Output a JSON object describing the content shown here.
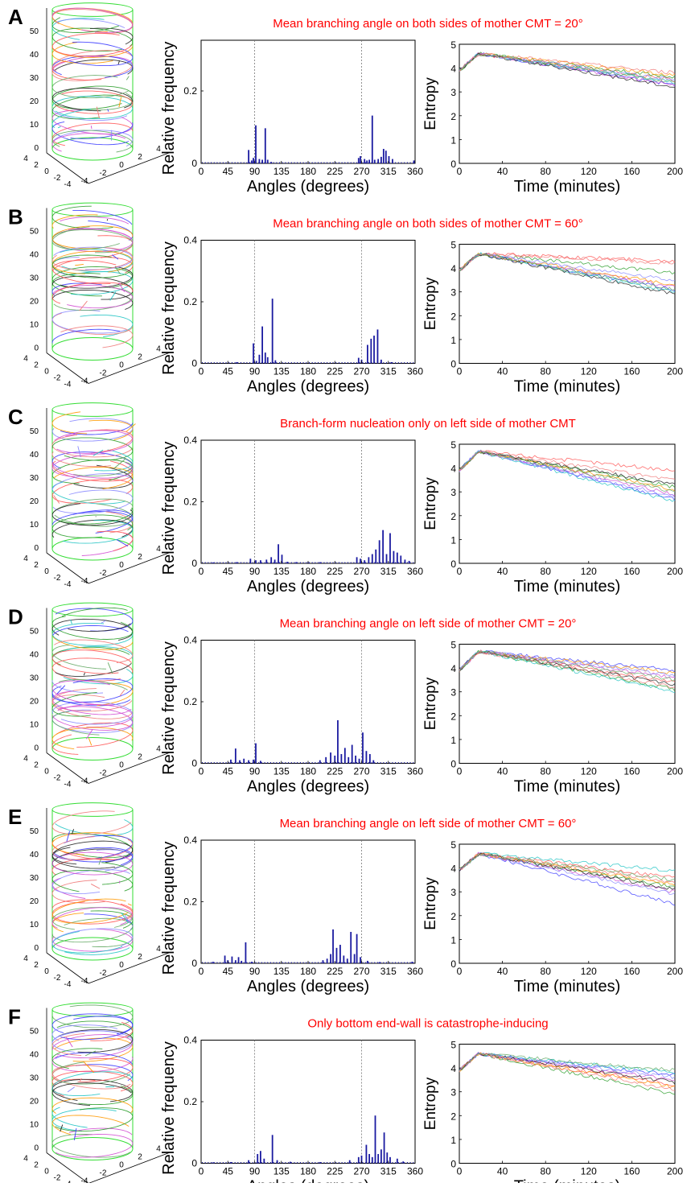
{
  "panels": [
    {
      "letter": "A",
      "title": "Mean branching angle on both sides of mother CMT = 20°",
      "helix": {
        "z_ticks": [
          "0",
          "10",
          "20",
          "30",
          "40",
          "50"
        ],
        "x_ticks": [
          "4",
          "2",
          "0",
          "-2",
          "-4"
        ],
        "y_ticks": [
          "-4",
          "-2",
          "0",
          "2",
          "4"
        ]
      },
      "hist": {
        "type": "bar",
        "xlabel": "Angles (degrees)",
        "ylabel": "Relative frequency",
        "xticks": [
          "0",
          "45",
          "90",
          "135",
          "180",
          "225",
          "270",
          "315",
          "360"
        ],
        "yticks": [
          "0",
          "0.2"
        ],
        "ylim": [
          0,
          0.34
        ],
        "xlim": [
          0,
          360
        ],
        "guides": [
          90,
          270
        ],
        "bars": [
          [
            80,
            0.037
          ],
          [
            85,
            0.008
          ],
          [
            88,
            0.015
          ],
          [
            92,
            0.105
          ],
          [
            98,
            0.012
          ],
          [
            103,
            0.01
          ],
          [
            108,
            0.097
          ],
          [
            112,
            0.01
          ],
          [
            118,
            0.004
          ],
          [
            265,
            0.015
          ],
          [
            268,
            0.02
          ],
          [
            275,
            0.012
          ],
          [
            279,
            0.008
          ],
          [
            283,
            0.01
          ],
          [
            288,
            0.132
          ],
          [
            292,
            0.01
          ],
          [
            298,
            0.012
          ],
          [
            303,
            0.018
          ],
          [
            307,
            0.04
          ],
          [
            311,
            0.035
          ],
          [
            316,
            0.02
          ],
          [
            322,
            0.012
          ],
          [
            358,
            0.008
          ]
        ]
      },
      "entropy": {
        "type": "line",
        "xlabel": "Time (minutes)",
        "ylabel": "Entropy",
        "xticks": [
          "0",
          "40",
          "80",
          "120",
          "160",
          "200"
        ],
        "yticks": [
          "0",
          "1",
          "2",
          "3",
          "4",
          "5"
        ],
        "xlim": [
          0,
          200
        ],
        "ylim": [
          0,
          5
        ],
        "peak": 4.6,
        "end_values": [
          3.3,
          3.5,
          3.6,
          3.3,
          3.4,
          3.7,
          3.2,
          3.5,
          3.8,
          3.4
        ]
      }
    },
    {
      "letter": "B",
      "title": "Mean branching angle on both sides of mother CMT = 60°",
      "helix": {
        "z_ticks": [
          "0",
          "10",
          "20",
          "30",
          "40",
          "50"
        ],
        "x_ticks": [
          "4",
          "2",
          "0",
          "-2",
          "-4"
        ],
        "y_ticks": [
          "-4",
          "-2",
          "0",
          "2",
          "4"
        ]
      },
      "hist": {
        "type": "bar",
        "xlabel": "Angles (degrees)",
        "ylabel": "Relative frequency",
        "xticks": [
          "0",
          "45",
          "90",
          "135",
          "180",
          "225",
          "270",
          "315",
          "360"
        ],
        "yticks": [
          "0",
          "0.2",
          "0.4"
        ],
        "ylim": [
          0,
          0.4
        ],
        "xlim": [
          0,
          360
        ],
        "guides": [
          90,
          270
        ],
        "bars": [
          [
            60,
            0.004
          ],
          [
            88,
            0.065
          ],
          [
            93,
            0.008
          ],
          [
            98,
            0.028
          ],
          [
            103,
            0.12
          ],
          [
            108,
            0.035
          ],
          [
            112,
            0.02
          ],
          [
            120,
            0.21
          ],
          [
            125,
            0.01
          ],
          [
            265,
            0.018
          ],
          [
            270,
            0.012
          ],
          [
            280,
            0.06
          ],
          [
            286,
            0.08
          ],
          [
            291,
            0.09
          ],
          [
            297,
            0.11
          ],
          [
            303,
            0.012
          ],
          [
            320,
            0.004
          ]
        ]
      },
      "entropy": {
        "type": "line",
        "xlabel": "Time (minutes)",
        "ylabel": "Entropy",
        "xticks": [
          "0",
          "40",
          "80",
          "120",
          "160",
          "200"
        ],
        "yticks": [
          "0",
          "1",
          "2",
          "3",
          "4",
          "5"
        ],
        "xlim": [
          0,
          200
        ],
        "ylim": [
          0,
          5
        ],
        "peak": 4.6,
        "end_values": [
          3.1,
          4.3,
          3.8,
          3.2,
          3.0,
          3.3,
          2.9,
          3.5,
          4.2,
          3.1
        ]
      }
    },
    {
      "letter": "C",
      "title": "Branch-form nucleation only on left side of mother CMT",
      "helix": {
        "z_ticks": [
          "0",
          "10",
          "20",
          "30",
          "40",
          "50"
        ],
        "x_ticks": [
          "4",
          "2",
          "0",
          "-2",
          "-4"
        ],
        "y_ticks": [
          "-4",
          "-2",
          "0",
          "2",
          "4"
        ]
      },
      "hist": {
        "type": "bar",
        "xlabel": "Angles (degrees)",
        "ylabel": "Relative frequency",
        "xticks": [
          "0",
          "45",
          "90",
          "135",
          "180",
          "225",
          "270",
          "315",
          "360"
        ],
        "yticks": [
          "0",
          "0.2",
          "0.4"
        ],
        "ylim": [
          0,
          0.4
        ],
        "xlim": [
          0,
          360
        ],
        "guides": [
          90,
          270
        ],
        "bars": [
          [
            20,
            0.003
          ],
          [
            60,
            0.004
          ],
          [
            83,
            0.015
          ],
          [
            92,
            0.01
          ],
          [
            100,
            0.01
          ],
          [
            110,
            0.012
          ],
          [
            118,
            0.02
          ],
          [
            124,
            0.012
          ],
          [
            130,
            0.062
          ],
          [
            136,
            0.028
          ],
          [
            145,
            0.005
          ],
          [
            160,
            0.004
          ],
          [
            180,
            0.003
          ],
          [
            200,
            0.004
          ],
          [
            262,
            0.02
          ],
          [
            268,
            0.015
          ],
          [
            275,
            0.01
          ],
          [
            282,
            0.02
          ],
          [
            288,
            0.03
          ],
          [
            294,
            0.045
          ],
          [
            300,
            0.075
          ],
          [
            306,
            0.108
          ],
          [
            312,
            0.03
          ],
          [
            318,
            0.098
          ],
          [
            324,
            0.04
          ],
          [
            330,
            0.035
          ],
          [
            336,
            0.025
          ],
          [
            343,
            0.012
          ],
          [
            350,
            0.008
          ]
        ]
      },
      "entropy": {
        "type": "line",
        "xlabel": "Time (minutes)",
        "ylabel": "Entropy",
        "xticks": [
          "0",
          "40",
          "80",
          "120",
          "160",
          "200"
        ],
        "yticks": [
          "0",
          "1",
          "2",
          "3",
          "4",
          "5"
        ],
        "xlim": [
          0,
          200
        ],
        "ylim": [
          0,
          5
        ],
        "peak": 4.7,
        "end_values": [
          2.7,
          3.9,
          3.2,
          2.9,
          2.6,
          3.1,
          3.3,
          2.8,
          3.5,
          3.0
        ]
      }
    },
    {
      "letter": "D",
      "title": "Mean branching angle on left side of mother CMT = 20°",
      "helix": {
        "z_ticks": [
          "0",
          "10",
          "20",
          "30",
          "40",
          "50"
        ],
        "x_ticks": [
          "4",
          "2",
          "0",
          "-2",
          "-4"
        ],
        "y_ticks": [
          "-4",
          "-2",
          "0",
          "2",
          "4"
        ]
      },
      "hist": {
        "type": "bar",
        "xlabel": "Angles (degrees)",
        "ylabel": "Relative frequency",
        "xticks": [
          "0",
          "45",
          "90",
          "135",
          "180",
          "225",
          "270",
          "315",
          "360"
        ],
        "yticks": [
          "0",
          "0.2",
          "0.4"
        ],
        "ylim": [
          0,
          0.4
        ],
        "xlim": [
          0,
          360
        ],
        "guides": [
          90,
          270
        ],
        "bars": [
          [
            50,
            0.012
          ],
          [
            58,
            0.048
          ],
          [
            65,
            0.01
          ],
          [
            72,
            0.015
          ],
          [
            80,
            0.01
          ],
          [
            88,
            0.012
          ],
          [
            92,
            0.065
          ],
          [
            100,
            0.008
          ],
          [
            200,
            0.01
          ],
          [
            210,
            0.02
          ],
          [
            218,
            0.035
          ],
          [
            225,
            0.025
          ],
          [
            230,
            0.14
          ],
          [
            236,
            0.03
          ],
          [
            242,
            0.05
          ],
          [
            248,
            0.02
          ],
          [
            254,
            0.06
          ],
          [
            260,
            0.025
          ],
          [
            266,
            0.015
          ],
          [
            272,
            0.1
          ],
          [
            278,
            0.04
          ],
          [
            284,
            0.03
          ],
          [
            290,
            0.01
          ]
        ]
      },
      "entropy": {
        "type": "line",
        "xlabel": "Time (minutes)",
        "ylabel": "Entropy",
        "xticks": [
          "0",
          "40",
          "80",
          "120",
          "160",
          "200"
        ],
        "yticks": [
          "0",
          "1",
          "2",
          "3",
          "4",
          "5"
        ],
        "xlim": [
          0,
          200
        ],
        "ylim": [
          0,
          5
        ],
        "peak": 4.7,
        "end_values": [
          3.9,
          3.4,
          3.1,
          3.6,
          3.0,
          3.8,
          3.3,
          3.7,
          3.2,
          3.5
        ]
      }
    },
    {
      "letter": "E",
      "title": "Mean branching angle on left side of mother CMT = 60°",
      "helix": {
        "z_ticks": [
          "0",
          "10",
          "20",
          "30",
          "40",
          "50"
        ],
        "x_ticks": [
          "4",
          "2",
          "0",
          "-2",
          "-4"
        ],
        "y_ticks": [
          "-4",
          "-2",
          "0",
          "2",
          "4"
        ]
      },
      "hist": {
        "type": "bar",
        "xlabel": "Angles (degrees)",
        "ylabel": "Relative frequency",
        "xticks": [
          "0",
          "45",
          "90",
          "135",
          "180",
          "225",
          "270",
          "315",
          "360"
        ],
        "yticks": [
          "0",
          "0.2",
          "0.4"
        ],
        "ylim": [
          0,
          0.4
        ],
        "xlim": [
          0,
          360
        ],
        "guides": [
          90,
          270
        ],
        "bars": [
          [
            20,
            0.005
          ],
          [
            40,
            0.025
          ],
          [
            45,
            0.01
          ],
          [
            52,
            0.022
          ],
          [
            58,
            0.01
          ],
          [
            63,
            0.02
          ],
          [
            68,
            0.008
          ],
          [
            75,
            0.068
          ],
          [
            85,
            0.005
          ],
          [
            205,
            0.01
          ],
          [
            212,
            0.015
          ],
          [
            218,
            0.03
          ],
          [
            222,
            0.11
          ],
          [
            228,
            0.05
          ],
          [
            234,
            0.06
          ],
          [
            240,
            0.025
          ],
          [
            246,
            0.015
          ],
          [
            252,
            0.102
          ],
          [
            258,
            0.03
          ],
          [
            262,
            0.095
          ],
          [
            268,
            0.02
          ],
          [
            280,
            0.008
          ],
          [
            300,
            0.004
          ],
          [
            355,
            0.005
          ]
        ]
      },
      "entropy": {
        "type": "line",
        "xlabel": "Time (minutes)",
        "ylabel": "Entropy",
        "xticks": [
          "0",
          "40",
          "80",
          "120",
          "160",
          "200"
        ],
        "yticks": [
          "0",
          "1",
          "2",
          "3",
          "4",
          "5"
        ],
        "xlim": [
          0,
          200
        ],
        "ylim": [
          0,
          5
        ],
        "peak": 4.6,
        "end_values": [
          2.5,
          3.6,
          3.2,
          3.0,
          3.9,
          3.3,
          3.1,
          2.9,
          3.4,
          3.5
        ]
      }
    },
    {
      "letter": "F",
      "title": "Only bottom end-wall is catastrophe-inducing",
      "helix": {
        "z_ticks": [
          "0",
          "10",
          "20",
          "30",
          "40",
          "50"
        ],
        "x_ticks": [
          "4",
          "2",
          "0",
          "-2",
          "-4"
        ],
        "y_ticks": [
          "-4",
          "-2",
          "0",
          "2",
          "4"
        ]
      },
      "hist": {
        "type": "bar",
        "xlabel": "Angles (degrees)",
        "ylabel": "Relative frequency",
        "xticks": [
          "0",
          "45",
          "90",
          "135",
          "180",
          "225",
          "270",
          "315",
          "360"
        ],
        "yticks": [
          "0",
          "0.2",
          "0.4"
        ],
        "ylim": [
          0,
          0.4
        ],
        "xlim": [
          0,
          360
        ],
        "guides": [
          90,
          270
        ],
        "bars": [
          [
            20,
            0.003
          ],
          [
            50,
            0.004
          ],
          [
            80,
            0.01
          ],
          [
            95,
            0.03
          ],
          [
            100,
            0.04
          ],
          [
            106,
            0.015
          ],
          [
            120,
            0.092
          ],
          [
            128,
            0.01
          ],
          [
            150,
            0.005
          ],
          [
            200,
            0.004
          ],
          [
            250,
            0.01
          ],
          [
            265,
            0.02
          ],
          [
            270,
            0.025
          ],
          [
            278,
            0.06
          ],
          [
            283,
            0.03
          ],
          [
            288,
            0.02
          ],
          [
            293,
            0.155
          ],
          [
            298,
            0.03
          ],
          [
            303,
            0.045
          ],
          [
            308,
            0.1
          ],
          [
            313,
            0.035
          ],
          [
            318,
            0.02
          ],
          [
            330,
            0.015
          ],
          [
            340,
            0.006
          ]
        ]
      },
      "entropy": {
        "type": "line",
        "xlabel": "Time (minutes)",
        "ylabel": "Entropy",
        "xticks": [
          "0",
          "40",
          "80",
          "120",
          "160",
          "200"
        ],
        "yticks": [
          "0",
          "1",
          "2",
          "3",
          "4",
          "5"
        ],
        "xlim": [
          0,
          200
        ],
        "ylim": [
          0,
          5
        ],
        "peak": 4.6,
        "end_values": [
          3.7,
          3.3,
          2.9,
          3.5,
          3.8,
          3.2,
          3.4,
          3.6,
          3.1,
          3.9
        ]
      }
    }
  ],
  "colors": {
    "title_red": "#ff0000",
    "bar_blue": "#1a1aa0",
    "cylinder_green": "#33dd33",
    "line_palette": [
      "#3b3bff",
      "#ff5555",
      "#2a9d2a",
      "#d24dd2",
      "#22c4c4",
      "#ff9900",
      "#222222",
      "#8888ff",
      "#f07a7a",
      "#66aa66"
    ]
  }
}
